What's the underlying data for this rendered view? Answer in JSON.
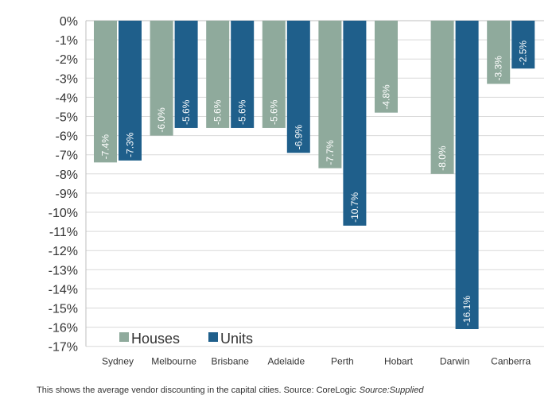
{
  "chart_data": {
    "type": "bar",
    "categories": [
      "Sydney",
      "Melbourne",
      "Brisbane",
      "Adelaide",
      "Perth",
      "Hobart",
      "Darwin",
      "Canberra"
    ],
    "series": [
      {
        "name": "Houses",
        "color": "#8faa9c",
        "values": [
          -7.4,
          -6.0,
          -5.6,
          -5.6,
          -7.7,
          -4.8,
          -8.0,
          -3.3
        ],
        "labels": [
          "-7.4%",
          "-6.0%",
          "-5.6%",
          "-5.6%",
          "-7.7%",
          "-4.8%",
          "-8.0%",
          "-3.3%"
        ]
      },
      {
        "name": "Units",
        "color": "#1f5f8b",
        "values": [
          -7.3,
          -5.6,
          -5.6,
          -6.9,
          -10.7,
          null,
          -16.1,
          -2.5
        ],
        "labels": [
          "-7.3%",
          "-5.6%",
          "-5.6%",
          "-6.9%",
          "-10.7%",
          "",
          "-16.1%",
          "-2.5%"
        ]
      }
    ],
    "ylim": [
      -17,
      0
    ],
    "yticks": [
      0,
      -1,
      -2,
      -3,
      -4,
      -5,
      -6,
      -7,
      -8,
      -9,
      -10,
      -11,
      -12,
      -13,
      -14,
      -15,
      -16,
      -17
    ],
    "ytick_labels": [
      "0%",
      "-1%",
      "-2%",
      "-3%",
      "-4%",
      "-5%",
      "-6%",
      "-7%",
      "-8%",
      "-9%",
      "-10%",
      "-11%",
      "-12%",
      "-13%",
      "-14%",
      "-15%",
      "-16%",
      "-17%"
    ],
    "grid": true,
    "legend_position": "bottom-left"
  },
  "caption": {
    "text": "This shows the average vendor discounting in the capital cities. Source: CoreLogic",
    "source": "Source:Supplied"
  }
}
